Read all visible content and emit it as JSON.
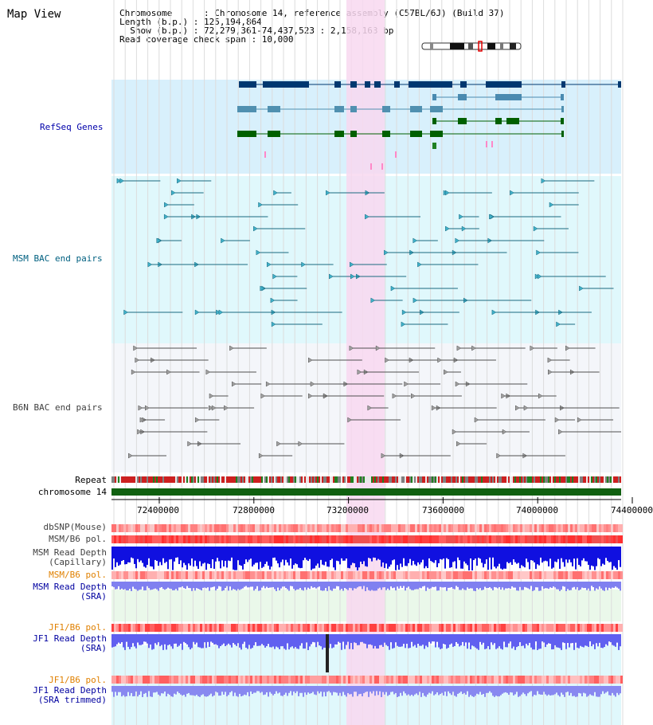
{
  "view_title": "Map View",
  "header": {
    "lines": [
      "Chromosome      : Chromosome 14, reference assembly (C57BL/6J) (Build 37)",
      "Length (b.p.) : 125,194,864",
      "  Show (b.p.) : 72,279,361-74,437,523 : 2,158,163 bp",
      "Read coverage check span : 10,000"
    ]
  },
  "tracks": {
    "refseq": "RefSeq Genes",
    "msm_bac": "MSM BAC end pairs",
    "b6n_bac": "B6N BAC end pairs",
    "repeat": "Repeat",
    "chromosome": "chromosome 14",
    "dbsnp": "dbSNP(Mouse)",
    "msm_b6_pol_1": "MSM/B6 pol.",
    "msm_read_depth_cap": "MSM Read Depth\n(Capillary)",
    "msm_b6_pol_2": "MSM/B6 pol.",
    "msm_read_depth_sra": "MSM Read Depth\n(SRA)",
    "jf1_b6_pol_1": "JF1/B6 pol.",
    "jf1_read_depth_sra": "JF1 Read Depth\n(SRA)",
    "jf1_b6_pol_2": "JF1/B6 pol.",
    "jf1_read_depth_trim": "JF1 Read Depth\n(SRA trimmed)"
  },
  "axis": {
    "ticks": [
      "72400000",
      "72800000",
      "73200000",
      "73600000",
      "74000000",
      "74400000"
    ],
    "tick_values": [
      72400000,
      72800000,
      73200000,
      73600000,
      74000000,
      74400000
    ]
  },
  "colors": {
    "highlight": "#f8d8f0",
    "refseq_bg": "#d8f0fc",
    "msm_bg": "#e0f8fc",
    "b6n_bg": "#f4f6fa",
    "refseq_label": "#0000aa",
    "msm_label": "#006080",
    "b6n_label": "#404040",
    "orange_label": "#e08000",
    "blue_label": "#0000a0"
  }
}
